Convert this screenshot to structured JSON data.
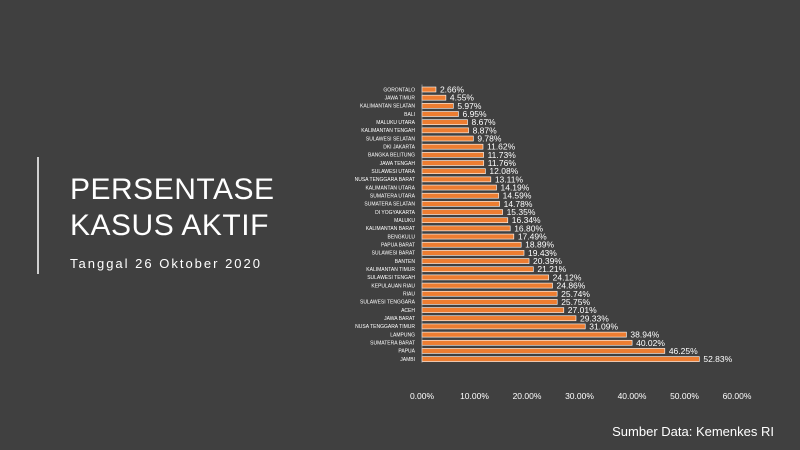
{
  "title_line1": "PERSENTASE",
  "title_line2": "KASUS AKTIF",
  "subtitle": "Tanggal 26 Oktober 2020",
  "source": "Sumber Data: Kemenkes RI",
  "colors": {
    "background": "#404040",
    "bar": "#ed7d31",
    "bar_outline": "#ffffff"
  },
  "chart_data": {
    "type": "bar",
    "orientation": "horizontal",
    "categories": [
      "GORONTALO",
      "JAWA TIMUR",
      "KALIMANTAN SELATAN",
      "BALI",
      "MALUKU UTARA",
      "KALIMANTAN TENGAH",
      "SULAWESI SELATAN",
      "DKI JAKARTA",
      "BANGKA BELITUNG",
      "JAWA TENGAH",
      "SULAWESI UTARA",
      "NUSA TENGGARA BARAT",
      "KALIMANTAN UTARA",
      "SUMATERA UTARA",
      "SUMATERA SELATAN",
      "DI YOGYAKARTA",
      "MALUKU",
      "KALIMANTAN BARAT",
      "BENGKULU",
      "PAPUA BARAT",
      "SULAWESI BARAT",
      "BANTEN",
      "KALIMANTAN TIMUR",
      "SULAWESI TENGAH",
      "KEPULAUAN RIAU",
      "RIAU",
      "SULAWESI TENGGARA",
      "ACEH",
      "JAWA BARAT",
      "NUSA TENGGARA TIMUR",
      "LAMPUNG",
      "SUMATERA BARAT",
      "PAPUA",
      "JAMBI"
    ],
    "values": [
      2.66,
      4.55,
      5.97,
      6.95,
      8.67,
      8.87,
      9.78,
      11.62,
      11.73,
      11.76,
      12.08,
      13.11,
      14.19,
      14.59,
      14.78,
      15.35,
      16.34,
      16.8,
      17.49,
      18.89,
      19.43,
      20.39,
      21.21,
      24.12,
      24.86,
      25.74,
      25.75,
      27.01,
      29.33,
      31.09,
      38.94,
      40.02,
      46.25,
      52.83
    ],
    "data_labels": [
      "2.66%",
      "4.55%",
      "5.97%",
      "6.95%",
      "8.67%",
      "8.87%",
      "9.78%",
      "11.62%",
      "11.73%",
      "11.76%",
      "12.08%",
      "13.11%",
      "14.19%",
      "14.59%",
      "14.78%",
      "15.35%",
      "16.34%",
      "16.80%",
      "17.49%",
      "18.89%",
      "19.43%",
      "20.39%",
      "21.21%",
      "24.12%",
      "24.86%",
      "25.74%",
      "25.75%",
      "27.01%",
      "29.33%",
      "31.09%",
      "38.94%",
      "40.02%",
      "46.25%",
      "52.83%"
    ],
    "xticks": [
      "0.00%",
      "10.00%",
      "20.00%",
      "30.00%",
      "40.00%",
      "50.00%",
      "60.00%"
    ],
    "xlim": [
      0,
      60
    ],
    "title": "",
    "xlabel": "",
    "ylabel": "",
    "grid": false,
    "legend": "none"
  }
}
